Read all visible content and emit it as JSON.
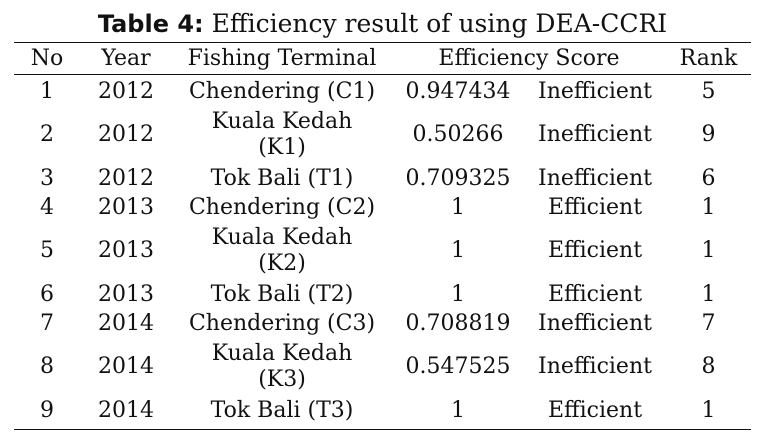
{
  "caption": {
    "label": "Table 4:",
    "text": " Efficiency result of using DEA-CCRI"
  },
  "headers": {
    "no": "No",
    "year": "Year",
    "terminal": "Fishing Terminal",
    "score": "Efficiency Score",
    "rank": "Rank"
  },
  "rows": [
    {
      "no": "1",
      "year": "2012",
      "terminal": [
        "Chendering (C1)"
      ],
      "score": "0.947434",
      "status": "Inefficient",
      "rank": "5"
    },
    {
      "no": "2",
      "year": "2012",
      "terminal": [
        "Kuala Kedah",
        "(K1)"
      ],
      "score": "0.50266",
      "status": "Inefficient",
      "rank": "9"
    },
    {
      "no": "3",
      "year": "2012",
      "terminal": [
        "Tok Bali (T1)"
      ],
      "score": "0.709325",
      "status": "Inefficient",
      "rank": "6"
    },
    {
      "no": "4",
      "year": "2013",
      "terminal": [
        "Chendering (C2)"
      ],
      "score": "1",
      "status": "Efficient",
      "rank": "1"
    },
    {
      "no": "5",
      "year": "2013",
      "terminal": [
        "Kuala Kedah",
        "(K2)"
      ],
      "score": "1",
      "status": "Efficient",
      "rank": "1"
    },
    {
      "no": "6",
      "year": "2013",
      "terminal": [
        "Tok Bali (T2)"
      ],
      "score": "1",
      "status": "Efficient",
      "rank": "1"
    },
    {
      "no": "7",
      "year": "2014",
      "terminal": [
        "Chendering (C3)"
      ],
      "score": "0.708819",
      "status": "Inefficient",
      "rank": "7"
    },
    {
      "no": "8",
      "year": "2014",
      "terminal": [
        "Kuala Kedah",
        "(K3)"
      ],
      "score": "0.547525",
      "status": "Inefficient",
      "rank": "8"
    },
    {
      "no": "9",
      "year": "2014",
      "terminal": [
        "Tok Bali (T3)"
      ],
      "score": "1",
      "status": "Efficient",
      "rank": "1"
    }
  ]
}
